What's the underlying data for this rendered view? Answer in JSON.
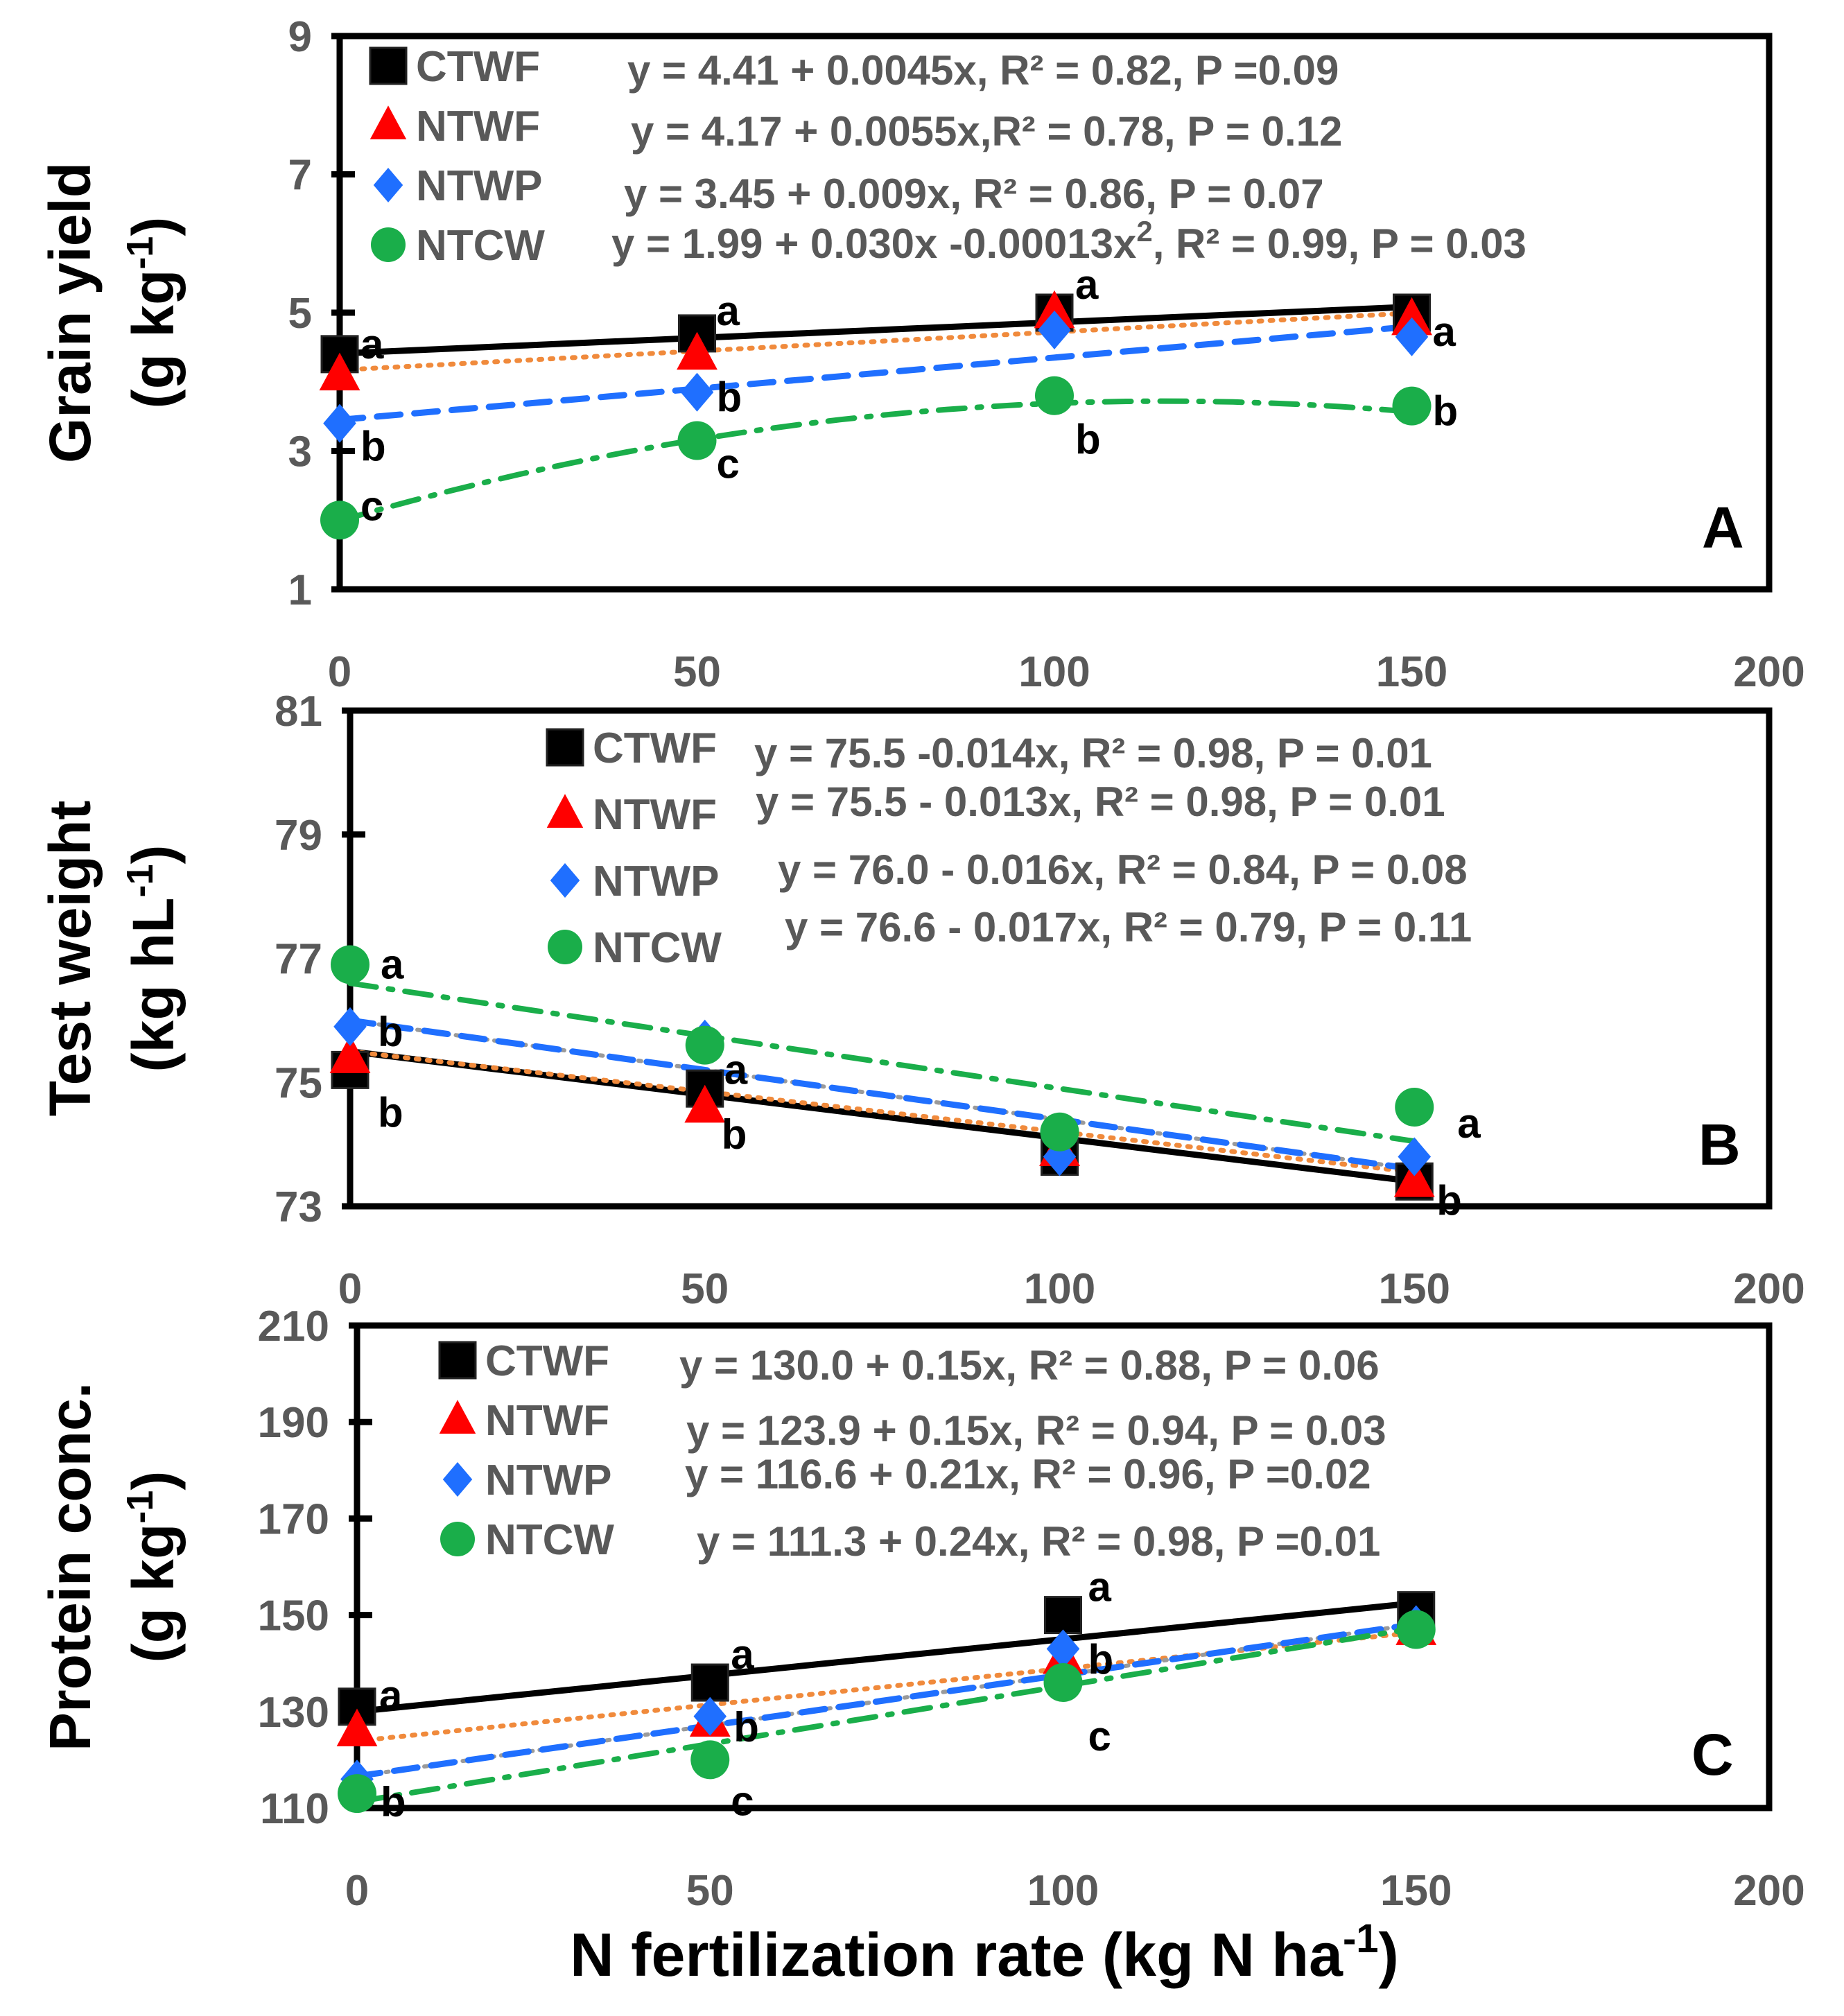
{
  "series_names": [
    "CTWF",
    "NTWF",
    "NTWP",
    "NTCW"
  ],
  "colors": {
    "CTWF": "#000000",
    "NTWF": "#ff0000",
    "NTWP": "#1f6fff",
    "NTCW": "#1aae4a",
    "NTWF_fit": "#f08a3c",
    "NTWP_fit": "#9a9a9a",
    "axis": "#000000",
    "tick_text": "#595959"
  },
  "xlabel_main": "N fertilization rate (kg N ha",
  "xlabel_sup": "-1",
  "xlabel_close": ")",
  "chart_data": [
    {
      "type": "scatter",
      "panel": "A",
      "ylabel_line1": "Grain yield",
      "ylabel_unit": "(g kg",
      "ylabel_sup": "-1",
      "ylabel_close": ")",
      "x": [
        0,
        50,
        100,
        150
      ],
      "xlim": [
        0,
        200
      ],
      "xticks": [
        "0",
        "50",
        "100",
        "150",
        "200"
      ],
      "ylim": [
        1,
        9
      ],
      "yticks": [
        "1",
        "3",
        "5",
        "7",
        "9"
      ],
      "series": [
        {
          "name": "CTWF",
          "values": [
            4.4,
            4.7,
            5.0,
            5.0
          ],
          "letters": [
            "a",
            "a",
            "a",
            "a"
          ],
          "equation": "y = 4.41 + 0.0045x, R² = 0.82, P =0.09",
          "fit": [
            4.41,
            0.0045,
            0
          ]
        },
        {
          "name": "NTWF",
          "values": [
            4.1,
            4.4,
            5.0,
            4.9
          ],
          "letters": [],
          "equation": "y = 4.17 + 0.0055x,R² = 0.78, P = 0.12",
          "fit": [
            4.17,
            0.0055,
            0
          ]
        },
        {
          "name": "NTWP",
          "values": [
            3.4,
            3.85,
            4.75,
            4.65
          ],
          "letters": [
            "b",
            "b",
            "",
            ""
          ],
          "equation": "y = 3.45 + 0.009x, R² = 0.86, P = 0.07",
          "fit": [
            3.45,
            0.009,
            0
          ]
        },
        {
          "name": "NTCW",
          "values": [
            2.0,
            3.15,
            3.8,
            3.65
          ],
          "letters": [
            "c",
            "c",
            "b",
            "b"
          ],
          "equation": "y = 1.99 + 0.030x -0.00013x",
          "equation_sup": "2",
          "equation_tail": ", R² = 0.99, P = 0.03",
          "fit": [
            1.99,
            0.03,
            -0.00013
          ]
        }
      ]
    },
    {
      "type": "scatter",
      "panel": "B",
      "ylabel_line1": "Test weight",
      "ylabel_unit": "(kg hL",
      "ylabel_sup": "-1",
      "ylabel_close": ")",
      "x": [
        0,
        50,
        100,
        150
      ],
      "xlim": [
        0,
        200
      ],
      "xticks": [
        "0",
        "50",
        "100",
        "150",
        "200"
      ],
      "ylim": [
        73,
        81
      ],
      "yticks": [
        "73",
        "75",
        "77",
        "79",
        "81"
      ],
      "series": [
        {
          "name": "CTWF",
          "values": [
            75.2,
            74.9,
            73.8,
            73.4
          ],
          "letters": [
            "b",
            "",
            "",
            ""
          ],
          "equation": "y = 75.5 -0.014x, R² = 0.98, P = 0.01",
          "fit": [
            75.5,
            -0.014,
            0
          ]
        },
        {
          "name": "NTWF",
          "values": [
            75.4,
            74.6,
            73.9,
            73.4
          ],
          "letters": [
            "",
            "b",
            "",
            "b"
          ],
          "equation": "y = 75.5 - 0.013x, R² = 0.98, P = 0.01",
          "fit": [
            75.5,
            -0.013,
            0
          ]
        },
        {
          "name": "NTWP",
          "values": [
            75.9,
            75.7,
            73.8,
            73.8
          ],
          "letters": [
            "b",
            "",
            "",
            ""
          ],
          "equation": "y = 76.0 - 0.016x, R² = 0.84, P = 0.08",
          "fit": [
            76.0,
            -0.016,
            0
          ]
        },
        {
          "name": "NTCW",
          "values": [
            76.9,
            75.6,
            74.2,
            74.6
          ],
          "letters": [
            "a",
            "a",
            "",
            "a"
          ],
          "equation": "y = 76.6 - 0.017x, R² = 0.79, P = 0.11",
          "fit": [
            76.6,
            -0.017,
            0
          ]
        }
      ]
    },
    {
      "type": "scatter",
      "panel": "C",
      "ylabel_line1": "Protein conc.",
      "ylabel_unit": "(g kg",
      "ylabel_sup": "-1",
      "ylabel_close": ")",
      "x": [
        0,
        50,
        100,
        150
      ],
      "xlim": [
        0,
        200
      ],
      "xticks": [
        "0",
        "50",
        "100",
        "150",
        "200"
      ],
      "ylim": [
        110,
        210
      ],
      "yticks": [
        "110",
        "130",
        "150",
        "170",
        "190",
        "210"
      ],
      "series": [
        {
          "name": "CTWF",
          "values": [
            131,
            136,
            150,
            151
          ],
          "letters": [
            "a",
            "a",
            "a",
            ""
          ],
          "equation": "y = 130.0 + 0.15x, R² = 0.88, P = 0.06",
          "fit": [
            130.0,
            0.15,
            0
          ]
        },
        {
          "name": "NTWF",
          "values": [
            126,
            128,
            141,
            147
          ],
          "letters": [],
          "equation": "y = 123.9 + 0.15x, R² = 0.94, P = 0.03",
          "fit": [
            123.9,
            0.15,
            0
          ]
        },
        {
          "name": "NTWP",
          "values": [
            116,
            129,
            143,
            148
          ],
          "letters": [
            "b",
            "b",
            "b",
            ""
          ],
          "equation": "y = 116.6 + 0.21x, R² = 0.96, P =0.02",
          "fit": [
            116.6,
            0.21,
            0
          ]
        },
        {
          "name": "NTCW",
          "values": [
            113,
            120,
            136,
            147
          ],
          "letters": [
            "",
            "c",
            "c",
            ""
          ],
          "equation": "y = 111.3 + 0.24x, R² = 0.98, P =0.01",
          "fit": [
            111.3,
            0.24,
            0
          ]
        }
      ]
    }
  ]
}
